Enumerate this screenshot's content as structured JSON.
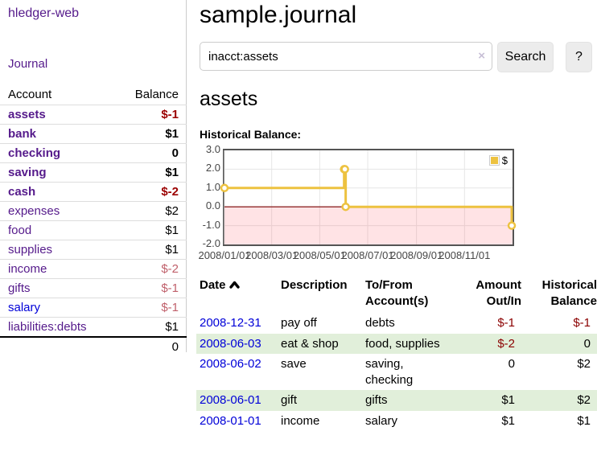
{
  "app": {
    "title": "hledger-web",
    "nav_journal": "Journal"
  },
  "sidebar": {
    "header": {
      "account": "Account",
      "balance": "Balance"
    },
    "accounts": [
      {
        "name": "assets",
        "indent": 1,
        "style": "bold",
        "balance": "$-1",
        "balance_class": "negative-strong",
        "link_class": ""
      },
      {
        "name": "bank",
        "indent": 2,
        "style": "bold",
        "balance": "$1",
        "balance_class": "",
        "link_class": ""
      },
      {
        "name": "checking",
        "indent": 3,
        "style": "bold",
        "balance": "0",
        "balance_class": "",
        "link_class": ""
      },
      {
        "name": "saving",
        "indent": 3,
        "style": "bold",
        "balance": "$1",
        "balance_class": "",
        "link_class": ""
      },
      {
        "name": "cash",
        "indent": 2,
        "style": "bold",
        "balance": "$-2",
        "balance_class": "negative-strong",
        "link_class": ""
      },
      {
        "name": "expenses",
        "indent": 1,
        "style": "",
        "balance": "$2",
        "balance_class": "",
        "link_class": ""
      },
      {
        "name": "food",
        "indent": 2,
        "style": "",
        "balance": "$1",
        "balance_class": "",
        "link_class": ""
      },
      {
        "name": "supplies",
        "indent": 2,
        "style": "",
        "balance": "$1",
        "balance_class": "",
        "link_class": ""
      },
      {
        "name": "income",
        "indent": 1,
        "style": "",
        "balance": "$-2",
        "balance_class": "negative-light",
        "link_class": ""
      },
      {
        "name": "gifts",
        "indent": 2,
        "style": "",
        "balance": "$-1",
        "balance_class": "negative-light",
        "link_class": ""
      },
      {
        "name": "salary",
        "indent": 2,
        "style": "",
        "balance": "$-1",
        "balance_class": "negative-light",
        "link_class": "unvisited"
      },
      {
        "name": "liabilities:debts",
        "indent": 1,
        "style": "",
        "balance": "$1",
        "balance_class": "",
        "link_class": ""
      }
    ],
    "total": "0"
  },
  "header": {
    "title": "sample.journal"
  },
  "search": {
    "value": "inacct:assets",
    "clear_icon": "×",
    "button_label": "Search",
    "help_label": "?"
  },
  "account_page": {
    "heading": "assets",
    "chart_label": "Historical Balance:"
  },
  "chart_data": {
    "type": "line",
    "title": "Historical Balance:",
    "step": true,
    "series": [
      {
        "name": "$",
        "color": "#edc240",
        "points": [
          [
            "2008-01-01",
            1
          ],
          [
            "2008-06-01",
            2
          ],
          [
            "2008-06-02",
            2
          ],
          [
            "2008-06-03",
            0
          ],
          [
            "2008-12-31",
            -1
          ]
        ]
      }
    ],
    "x_ticks": [
      "2008/01/01",
      "2008/03/01",
      "2008/05/01",
      "2008/07/01",
      "2008/09/01",
      "2008/11/01"
    ],
    "y_ticks": [
      "3.0",
      "2.0",
      "1.0",
      "0.0",
      "-1.0",
      "-2.0"
    ],
    "ylim": [
      -2,
      3
    ],
    "grid": true,
    "negative_region_color": "rgba(255,60,70,0.14)",
    "zero_line_color": "#7a0000",
    "grid_color": "#e6e6e6",
    "border_color": "#545454",
    "legend": {
      "label": "$",
      "position": "top-right"
    }
  },
  "register": {
    "columns": [
      "Date",
      "Description",
      "To/From Account(s)",
      "Amount Out/In",
      "Historical Balance"
    ],
    "rows": [
      {
        "date": "2008-12-31",
        "description": "pay off",
        "accounts": [
          "debts"
        ],
        "amount": "$-1",
        "amount_class": "negative",
        "balance": "$-1",
        "balance_class": "negative"
      },
      {
        "date": "2008-06-03",
        "description": "eat & shop",
        "accounts": [
          "food, supplies"
        ],
        "amount": "$-2",
        "amount_class": "negative",
        "balance": "0",
        "balance_class": ""
      },
      {
        "date": "2008-06-02",
        "description": "save",
        "accounts": [
          "saving,",
          "checking"
        ],
        "amount": "0",
        "amount_class": "",
        "balance": "$2",
        "balance_class": ""
      },
      {
        "date": "2008-06-01",
        "description": "gift",
        "accounts": [
          "gifts"
        ],
        "amount": "$1",
        "amount_class": "",
        "balance": "$2",
        "balance_class": ""
      },
      {
        "date": "2008-01-01",
        "description": "income",
        "accounts": [
          "salary"
        ],
        "amount": "$1",
        "amount_class": "",
        "balance": "$1",
        "balance_class": ""
      }
    ]
  }
}
